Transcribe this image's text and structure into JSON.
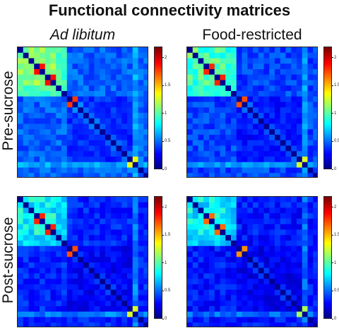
{
  "title": "Functional connectivity matrices",
  "col_titles": [
    "Ad libitum",
    "Food-restricted"
  ],
  "row_titles": [
    "Pre-sucrose",
    "Post-sucrose"
  ],
  "chart_data": {
    "type": "heatmap",
    "n_regions": 24,
    "colormap": "jet",
    "color_range": [
      0,
      2.2
    ],
    "colorbar_ticks": [
      0,
      0.5,
      1,
      1.5,
      2
    ],
    "panels": [
      {
        "condition": "Ad libitum",
        "phase": "Pre-sucrose",
        "base": 0.48,
        "block1": 1.12,
        "block2": 0.95,
        "stripe_a": 0.98,
        "stripe_b": 0.62,
        "peak_r": 1.9
      },
      {
        "condition": "Food-restricted",
        "phase": "Pre-sucrose",
        "base": 0.42,
        "block1": 0.98,
        "block2": 0.9,
        "stripe_a": 0.9,
        "stripe_b": 0.6,
        "peak_r": 1.85
      },
      {
        "condition": "Ad libitum",
        "phase": "Post-sucrose",
        "base": 0.35,
        "block1": 0.82,
        "block2": 0.68,
        "stripe_a": 0.75,
        "stripe_b": 0.55,
        "peak_r": 1.85
      },
      {
        "condition": "Food-restricted",
        "phase": "Post-sucrose",
        "base": 0.32,
        "block1": 0.78,
        "block2": 0.62,
        "stripe_a": 0.72,
        "stripe_b": 0.5,
        "peak_r": 1.7
      }
    ]
  }
}
